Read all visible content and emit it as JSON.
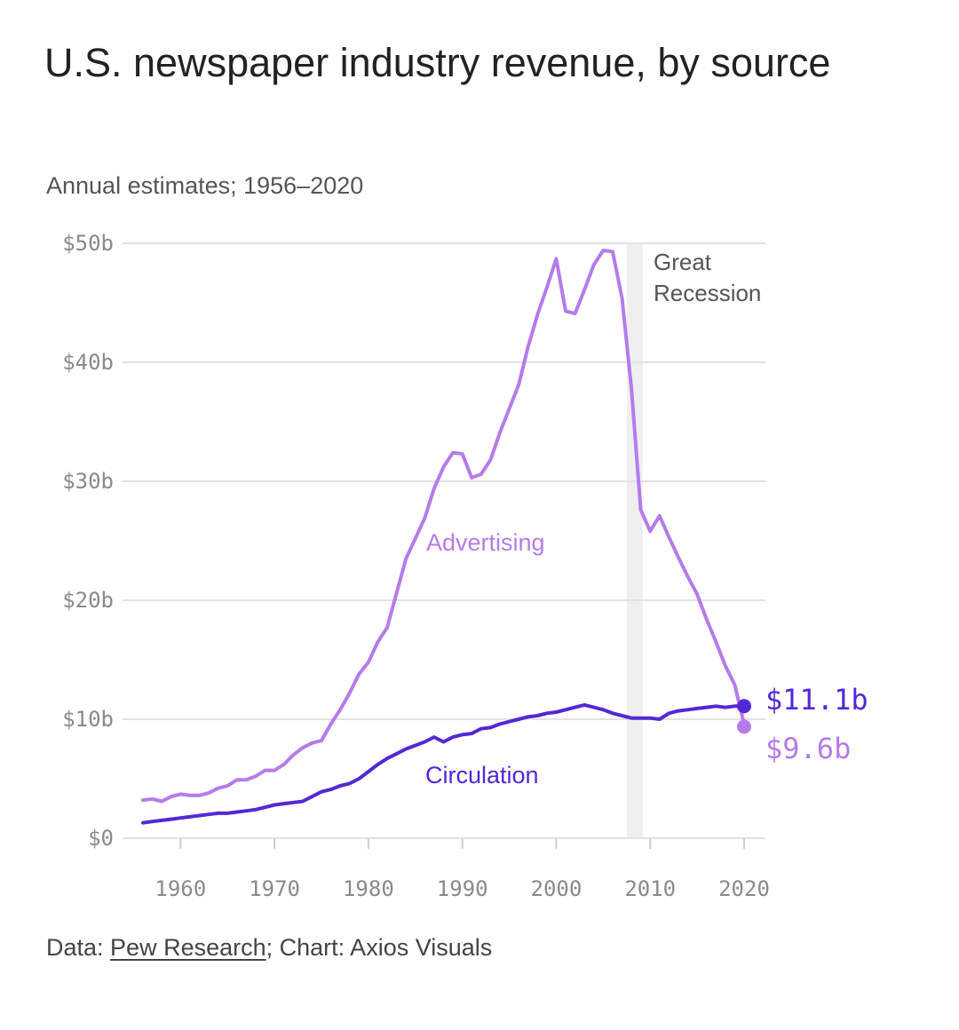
{
  "header": {
    "title": "U.S. newspaper industry revenue, by source",
    "subtitle": "Annual estimates; 1956–2020"
  },
  "footer": {
    "prefix": "Data: ",
    "link_text": "Pew Research",
    "suffix": "; Chart: Axios Visuals"
  },
  "colors": {
    "advertising": "#b57bea",
    "circulation": "#5328d6",
    "gridline": "#e2e2e2",
    "recession_band": "#efefef"
  },
  "chart_data": {
    "type": "line",
    "title": "U.S. newspaper industry revenue, by source",
    "subtitle": "Annual estimates; 1956–2020",
    "xlim": [
      1956,
      2020
    ],
    "ylim": [
      0,
      50
    ],
    "x_ticks": [
      "1960",
      "1970",
      "1980",
      "1990",
      "2000",
      "2010",
      "2020"
    ],
    "y_ticks": [
      "$0",
      "$10b",
      "$20b",
      "$30b",
      "$40b",
      "$50b"
    ],
    "grid": true,
    "annotations": [
      {
        "text_lines": [
          "Great",
          "Recession"
        ],
        "x_start": 2007.5,
        "x_end": 2009.2
      }
    ],
    "series": [
      {
        "name": "Advertising",
        "color": "#b57bea",
        "end_label": "$9.6b",
        "x": [
          1956,
          1957,
          1958,
          1959,
          1960,
          1961,
          1962,
          1963,
          1964,
          1965,
          1966,
          1967,
          1968,
          1969,
          1970,
          1971,
          1972,
          1973,
          1974,
          1975,
          1976,
          1977,
          1978,
          1979,
          1980,
          1981,
          1982,
          1983,
          1984,
          1985,
          1986,
          1987,
          1988,
          1989,
          1990,
          1991,
          1992,
          1993,
          1994,
          1995,
          1996,
          1997,
          1998,
          1999,
          2000,
          2001,
          2002,
          2003,
          2004,
          2005,
          2006,
          2007,
          2008,
          2009,
          2010,
          2011,
          2012,
          2013,
          2014,
          2015,
          2016,
          2017,
          2018,
          2019,
          2020
        ],
        "values": [
          3.2,
          3.3,
          3.1,
          3.5,
          3.7,
          3.6,
          3.6,
          3.8,
          4.2,
          4.4,
          4.9,
          4.9,
          5.2,
          5.7,
          5.7,
          6.2,
          7.0,
          7.6,
          8.0,
          8.2,
          9.6,
          10.8,
          12.2,
          13.8,
          14.8,
          16.5,
          17.7,
          20.6,
          23.5,
          25.2,
          26.9,
          29.4,
          31.2,
          32.4,
          32.3,
          30.3,
          30.6,
          31.8,
          34.1,
          36.1,
          38.1,
          41.3,
          44.0,
          46.3,
          48.7,
          44.3,
          44.1,
          46.1,
          48.2,
          49.4,
          49.3,
          45.4,
          37.8,
          27.6,
          25.8,
          27.1,
          25.3,
          23.6,
          22.0,
          20.5,
          18.4,
          16.5,
          14.5,
          12.9,
          9.6
        ]
      },
      {
        "name": "Circulation",
        "color": "#5328d6",
        "end_label": "$11.1b",
        "x": [
          1956,
          1957,
          1958,
          1959,
          1960,
          1961,
          1962,
          1963,
          1964,
          1965,
          1966,
          1967,
          1968,
          1969,
          1970,
          1971,
          1972,
          1973,
          1974,
          1975,
          1976,
          1977,
          1978,
          1979,
          1980,
          1981,
          1982,
          1983,
          1984,
          1985,
          1986,
          1987,
          1988,
          1989,
          1990,
          1991,
          1992,
          1993,
          1994,
          1995,
          1996,
          1997,
          1998,
          1999,
          2000,
          2001,
          2002,
          2003,
          2004,
          2005,
          2006,
          2007,
          2008,
          2009,
          2010,
          2011,
          2012,
          2013,
          2014,
          2015,
          2016,
          2017,
          2018,
          2019,
          2020
        ],
        "values": [
          1.3,
          1.4,
          1.5,
          1.6,
          1.7,
          1.8,
          1.9,
          2.0,
          2.1,
          2.1,
          2.2,
          2.3,
          2.4,
          2.6,
          2.8,
          2.9,
          3.0,
          3.1,
          3.5,
          3.9,
          4.1,
          4.4,
          4.6,
          5.0,
          5.6,
          6.2,
          6.7,
          7.1,
          7.5,
          7.8,
          8.1,
          8.5,
          8.1,
          8.5,
          8.7,
          8.8,
          9.2,
          9.3,
          9.6,
          9.8,
          10.0,
          10.2,
          10.3,
          10.5,
          10.6,
          10.8,
          11.0,
          11.2,
          11.0,
          10.8,
          10.5,
          10.3,
          10.1,
          10.1,
          10.1,
          10.0,
          10.5,
          10.7,
          10.8,
          10.9,
          11.0,
          11.1,
          11.0,
          11.1,
          11.1
        ]
      }
    ]
  }
}
